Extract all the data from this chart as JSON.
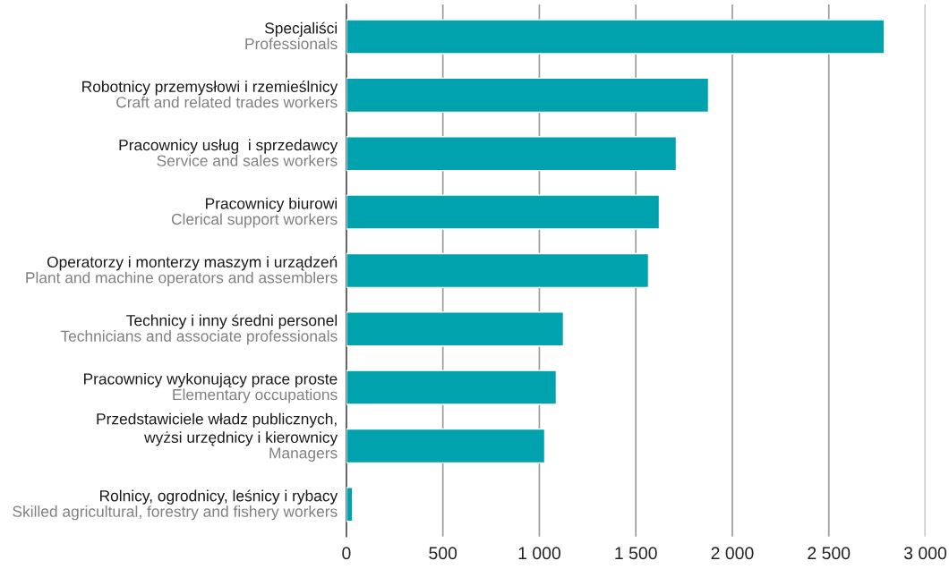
{
  "chart_data": {
    "type": "bar",
    "orientation": "horizontal",
    "categories": [
      "Specjaliści\nProfessionals",
      "Robotnicy przemysłowi i rzemieślnicy\nCraft and related trades workers",
      "Pracownicy usług  i sprzedawcy\nService and sales workers",
      "Pracownicy biurowi\nClerical support workers",
      "Operatorzy i monterzy maszym i urządzeń\nPlant and machine operators and assemblers",
      "Technicy i inny średni personel\nTechnicians and associate professionals",
      "Pracownicy wykonujący prace proste\nElementary occupations",
      "Przedstawiciele władz publicznych,\nwyżsi urzędnicy i kierownicy\nManagers",
      "Rolnicy, ogrodnicy, leśnicy i rybacy\nSkilled agricultural, forestry and fishery workers"
    ],
    "values": [
      2788,
      1877,
      1710,
      1622,
      1566,
      1125,
      1088,
      1028,
      32
    ],
    "color": "#00a3ad",
    "xlim": [
      0,
      3000
    ],
    "xticks": [
      0,
      500,
      {
        "value": 1000,
        "label": "1 000"
      },
      {
        "value": 1500,
        "label": "1 500"
      },
      {
        "value": 2000,
        "label": "2 000"
      },
      {
        "value": 2500,
        "label": "2 500"
      },
      {
        "value": 3000,
        "label": "3 000"
      }
    ],
    "grid": "x",
    "legend": false
  }
}
